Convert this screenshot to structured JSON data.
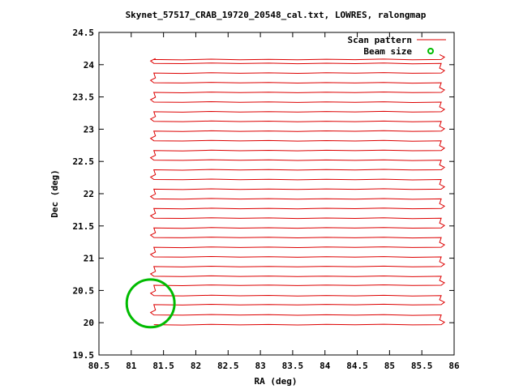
{
  "chart_data": {
    "type": "line",
    "title": "Skynet_57517_CRAB_19720_20548_cal.txt, LOWRES, ralongmap",
    "xlabel": "RA (deg)",
    "ylabel": "Dec (deg)",
    "xlim": [
      80.5,
      86
    ],
    "ylim": [
      19.5,
      24.5
    ],
    "xticks": [
      "80.5",
      "81",
      "81.5",
      "82",
      "82.5",
      "83",
      "83.5",
      "84",
      "84.5",
      "85",
      "85.5",
      "86"
    ],
    "yticks": [
      "19.5",
      "20",
      "20.5",
      "21",
      "21.5",
      "22",
      "22.5",
      "23",
      "23.5",
      "24",
      "24.5"
    ],
    "grid": false,
    "legend_position": "top-right",
    "series": [
      {
        "name": "Scan pattern",
        "color": "#dd0000",
        "style": "line",
        "scan_ra_min": 81.35,
        "scan_ra_max": 85.8,
        "scan_dec_rows": [
          19.97,
          20.12,
          20.28,
          20.42,
          20.58,
          20.72,
          20.87,
          21.02,
          21.17,
          21.32,
          21.47,
          21.62,
          21.77,
          21.92,
          22.07,
          22.22,
          22.37,
          22.52,
          22.67,
          22.82,
          22.97,
          23.12,
          23.27,
          23.42,
          23.57,
          23.72,
          23.87,
          24.02,
          24.08
        ]
      },
      {
        "name": "Beam size",
        "color": "#00bb00",
        "style": "circle",
        "center": [
          81.3,
          20.3
        ],
        "radius_deg": 0.37
      }
    ]
  }
}
